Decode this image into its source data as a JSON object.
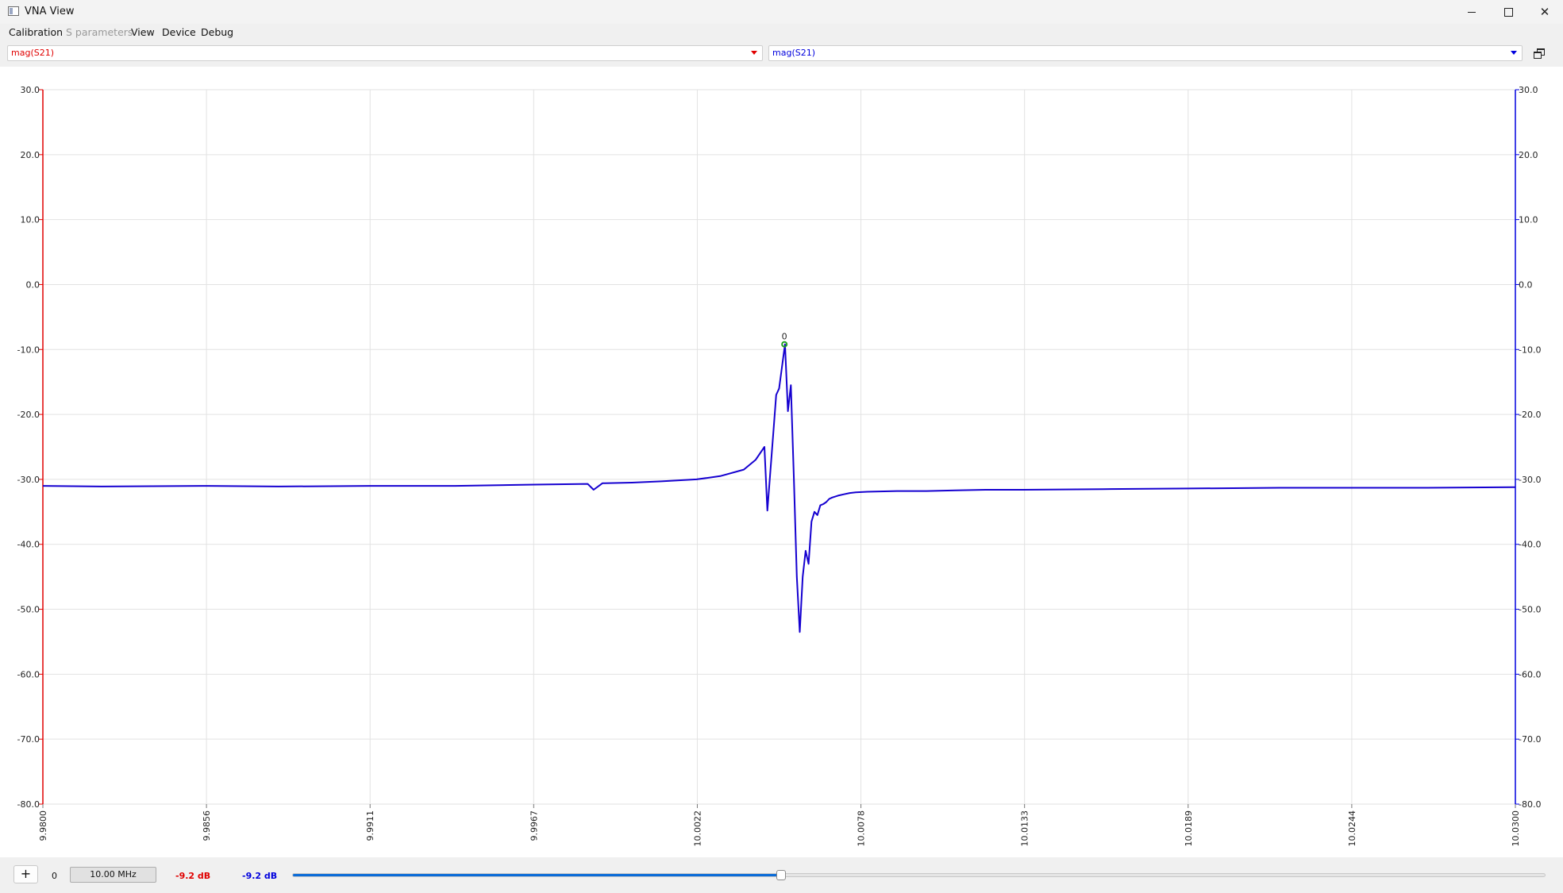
{
  "window": {
    "title": "VNA View",
    "controls": [
      "minimize",
      "maximize",
      "close"
    ]
  },
  "menu": {
    "calibration": "Calibration",
    "sparams": "S parameters",
    "view": "View",
    "device": "Device",
    "debug": "Debug"
  },
  "selectors": {
    "left": "mag(S21)",
    "right": "mag(S21)"
  },
  "colors": {
    "left_axis": "#e00000",
    "right_axis": "#0000dd",
    "trace": "#1500d0",
    "marker": "#1fa01f",
    "grid": "#e2e2e2"
  },
  "chart_data": {
    "type": "line",
    "x_unit": "MHz",
    "y_unit": "dB",
    "xlim": [
      9.98,
      10.03
    ],
    "ylim": [
      -80,
      30
    ],
    "x_ticks": [
      "9.9800",
      "9.9856",
      "9.9911",
      "9.9967",
      "10.0022",
      "10.0078",
      "10.0133",
      "10.0189",
      "10.0244",
      "10.0300"
    ],
    "y_ticks_left": [
      "30.0",
      "20.0",
      "10.0",
      "0.0",
      "-10.0",
      "-20.0",
      "-30.0",
      "-40.0",
      "-50.0",
      "-60.0",
      "-70.0",
      "-80.0"
    ],
    "y_ticks_right": [
      "30.0",
      "20.0",
      "10.0",
      "0.0",
      "-10.0",
      "-20.0",
      "-30.0",
      "-40.0",
      "-50.0",
      "-60.0",
      "-70.0",
      "-80.0"
    ],
    "grid": true,
    "series": [
      {
        "x": [
          9.98,
          9.982,
          9.9856,
          9.988,
          9.9911,
          9.994,
          9.9967,
          9.9985,
          9.9987,
          9.999,
          10.0,
          10.001,
          10.0022,
          10.003,
          10.0038,
          10.0042,
          10.0045,
          10.0046,
          10.0048,
          10.0049,
          10.005,
          10.0052,
          10.0053,
          10.0054,
          10.0055,
          10.0056,
          10.0057,
          10.0058,
          10.0059,
          10.006,
          10.0061,
          10.0062,
          10.0063,
          10.0064,
          10.0065,
          10.0066,
          10.0067,
          10.0068,
          10.007,
          10.0072,
          10.0074,
          10.0076,
          10.008,
          10.009,
          10.01,
          10.011,
          10.012,
          10.0133,
          10.016,
          10.0189,
          10.022,
          10.0244,
          10.027,
          10.03
        ],
        "y": [
          -31.0,
          -31.1,
          -31.0,
          -31.1,
          -31.0,
          -31.0,
          -30.8,
          -30.7,
          -31.6,
          -30.6,
          -30.5,
          -30.3,
          -30.0,
          -29.5,
          -28.5,
          -27.0,
          -25.0,
          -34.8,
          -23.0,
          -17.0,
          -16.0,
          -9.2,
          -19.5,
          -15.5,
          -29.5,
          -45.0,
          -53.5,
          -45.0,
          -41.0,
          -43.0,
          -36.5,
          -35.0,
          -35.5,
          -34.0,
          -33.8,
          -33.5,
          -33.0,
          -32.8,
          -32.5,
          -32.3,
          -32.1,
          -32.0,
          -31.9,
          -31.8,
          -31.8,
          -31.7,
          -31.6,
          -31.6,
          -31.5,
          -31.4,
          -31.3,
          -31.3,
          -31.3,
          -31.2
        ]
      }
    ],
    "marker": {
      "label": "0",
      "x": 10.00518,
      "y": -9.2
    }
  },
  "bottom": {
    "add_label": "+",
    "marker_index": "0",
    "marker_freq": "10.00 MHz",
    "marker_left_value": "-9.2 dB",
    "marker_right_value": "-9.2 dB",
    "slider_fraction": 0.39
  }
}
